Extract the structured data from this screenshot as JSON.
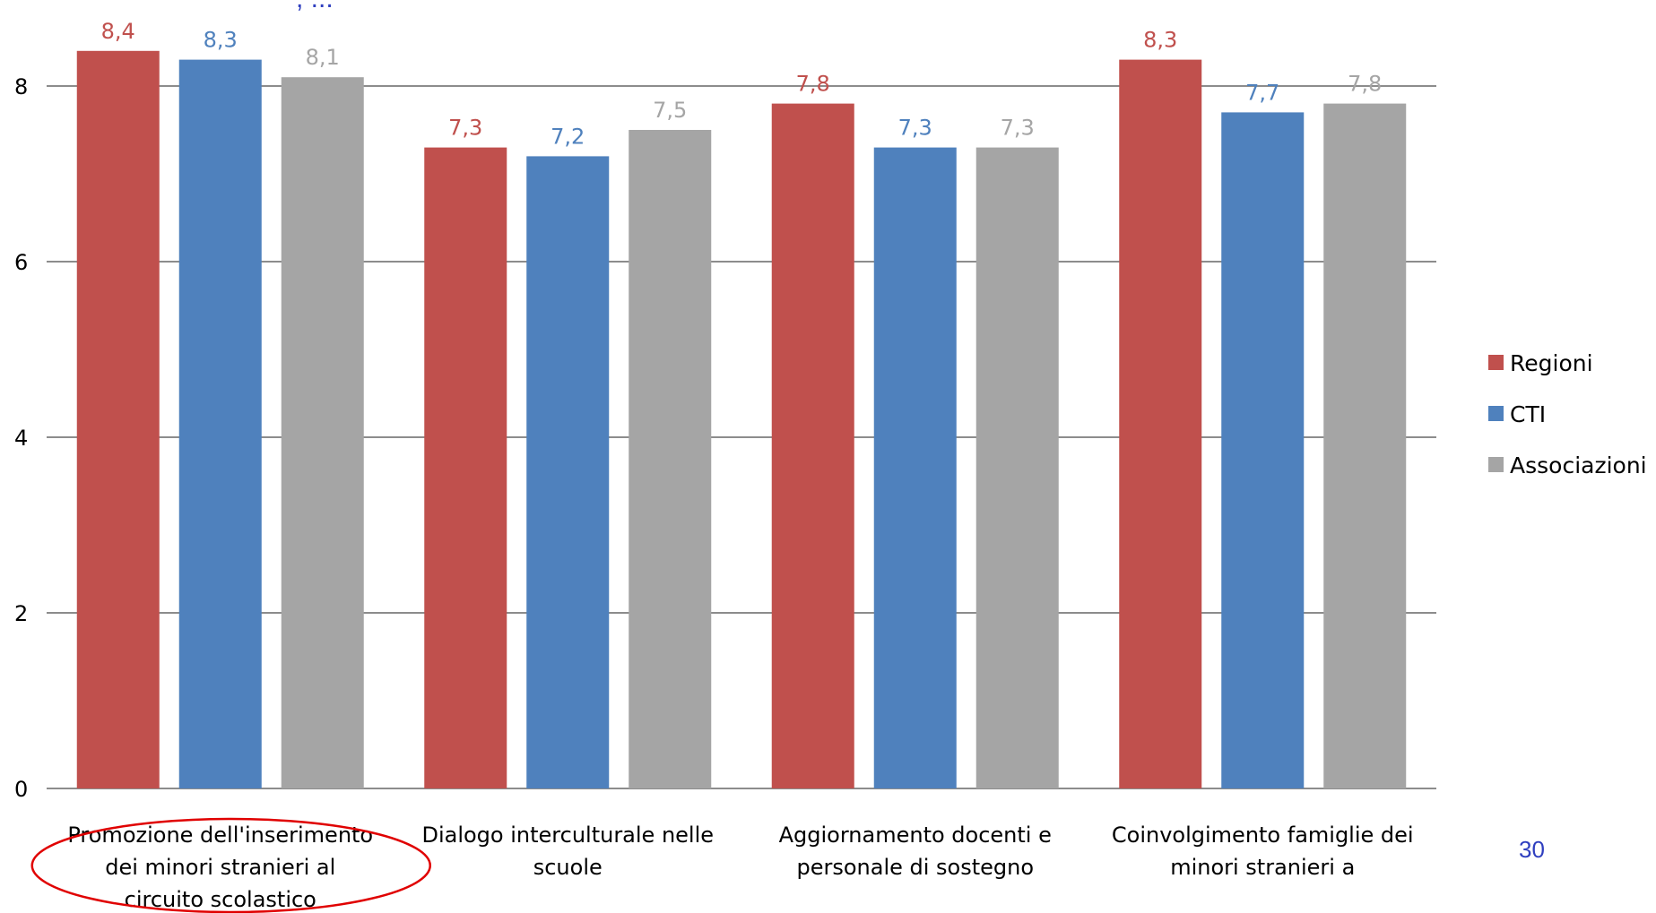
{
  "page": {
    "title_fragment": ", ...",
    "page_number": "30"
  },
  "annotation": {
    "type": "ellipse",
    "color": "#e00000",
    "target_category": "Promozione dell'inserimento dei minori stranieri al circuito scolastico"
  },
  "chart_data": {
    "type": "bar",
    "title": "",
    "xlabel": "",
    "ylabel": "",
    "ylim": [
      0,
      8
    ],
    "yticks": [
      0,
      2,
      4,
      6,
      8
    ],
    "grid": true,
    "legend_position": "right",
    "categories": [
      [
        "Promozione dell'inserimento",
        "dei minori stranieri al",
        "circuito scolastico"
      ],
      [
        "Dialogo interculturale nelle",
        "scuole"
      ],
      [
        "Aggiornamento  docenti e",
        "personale di sostegno"
      ],
      [
        "Coinvolgimento famiglie dei",
        "minori stranieri a"
      ]
    ],
    "series": [
      {
        "name": "Regioni",
        "color": "#c0504d",
        "values": [
          8.4,
          7.3,
          7.8,
          8.3
        ],
        "labels": [
          "8,4",
          "7,3",
          "7,8",
          "8,3"
        ]
      },
      {
        "name": "CTI",
        "color": "#4f81bd",
        "values": [
          8.3,
          7.2,
          7.3,
          7.7
        ],
        "labels": [
          "8,3",
          "7,2",
          "7,3",
          "7,7"
        ]
      },
      {
        "name": "Associazioni",
        "color": "#a5a5a5",
        "values": [
          8.1,
          7.5,
          7.3,
          7.8
        ],
        "labels": [
          "8,1",
          "7,5",
          "7,3",
          "7,8"
        ]
      }
    ]
  }
}
